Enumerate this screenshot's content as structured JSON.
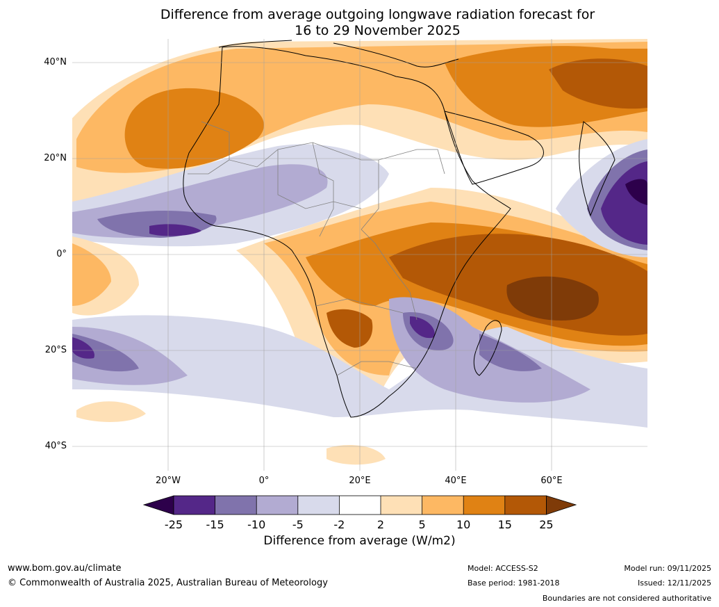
{
  "title": {
    "line1": "Difference from average outgoing longwave radiation forecast for",
    "line2": "16 to 29 November 2025"
  },
  "map": {
    "lat_labels": [
      "40°N",
      "20°N",
      "0°",
      "20°S",
      "40°S"
    ],
    "lon_labels": [
      "20°W",
      "0°",
      "20°E",
      "40°E",
      "60°E"
    ],
    "extent": {
      "lon_min": -40,
      "lon_max": 80,
      "lat_min": -45,
      "lat_max": 45
    },
    "gridlines": true
  },
  "colorbar": {
    "ticks": [
      "-25",
      "-15",
      "-10",
      "-5",
      "-2",
      "2",
      "5",
      "10",
      "15",
      "25"
    ],
    "colors": [
      "#2d004b",
      "#542788",
      "#8073ac",
      "#b2abd2",
      "#d8daeb",
      "#ffffff",
      "#fee0b6",
      "#fdb863",
      "#e08214",
      "#b35806",
      "#7f3b08"
    ],
    "label": "Difference from average (W/m2)"
  },
  "footer": {
    "website": "www.bom.gov.au/climate",
    "copyright": "© Commonwealth of Australia 2025, Australian Bureau of Meteorology",
    "model": "Model: ACCESS-S2",
    "base_period": "Base period: 1981-2018",
    "model_run": "Model run: 09/11/2025",
    "issued": "Issued: 12/11/2025",
    "disclaimer": "Boundaries are not considered authoritative"
  }
}
